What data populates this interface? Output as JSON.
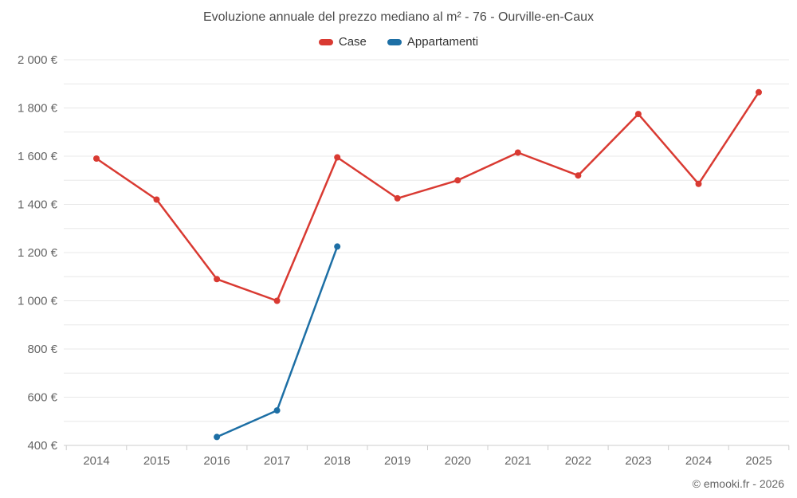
{
  "header": {
    "title": "Evoluzione annuale del prezzo mediano al m² - 76 - Ourville-en-Caux"
  },
  "legend": [
    {
      "label": "Case",
      "color": "#d93a32"
    },
    {
      "label": "Appartamenti",
      "color": "#1d6fa5"
    }
  ],
  "footer": {
    "copyright": "© emooki.fr - 2026"
  },
  "chart_data": {
    "type": "line",
    "title": "Evoluzione annuale del prezzo mediano al m² - 76 - Ourville-en-Caux",
    "xlabel": "",
    "ylabel": "",
    "x": [
      2014,
      2015,
      2016,
      2017,
      2018,
      2019,
      2020,
      2021,
      2022,
      2023,
      2024,
      2025
    ],
    "series": [
      {
        "name": "Case",
        "color": "#d93a32",
        "values": [
          1590,
          1420,
          1090,
          1000,
          1595,
          1425,
          1500,
          1615,
          1520,
          1775,
          1485,
          1865
        ]
      },
      {
        "name": "Appartamenti",
        "color": "#1d6fa5",
        "values": [
          null,
          null,
          435,
          545,
          1225,
          null,
          null,
          null,
          null,
          null,
          null,
          null
        ]
      }
    ],
    "ylim": [
      400,
      2000
    ],
    "ytick_step": 200,
    "grid_step": 100,
    "yticklabel_suffix": " €",
    "grid": true,
    "legend_position": "top"
  }
}
